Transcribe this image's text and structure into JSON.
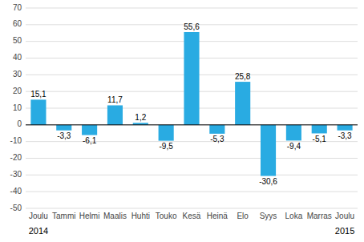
{
  "chart_data": {
    "type": "bar",
    "categories": [
      "Joulu",
      "Tammi",
      "Helmi",
      "Maalis",
      "Huhti",
      "Touko",
      "Kesä",
      "Heinä",
      "Elo",
      "Syys",
      "Loka",
      "Marras",
      "Joulu"
    ],
    "values": [
      15.1,
      -3.3,
      -6.1,
      11.7,
      1.2,
      -9.5,
      55.6,
      -5.3,
      25.8,
      -30.6,
      -9.4,
      -5.1,
      -3.3
    ],
    "value_labels": [
      "15,1",
      "-3,3",
      "-6,1",
      "11,7",
      "1,2",
      "-9,5",
      "55,6",
      "-5,3",
      "25,8",
      "-30,6",
      "-9,4",
      "-5,1",
      "-3,3"
    ],
    "color": "#29abe2",
    "ylim": [
      -50,
      70
    ],
    "yticks": [
      -50,
      -40,
      -30,
      -20,
      -10,
      0,
      10,
      20,
      30,
      40,
      50,
      60,
      70
    ],
    "grid": true,
    "data_labels": true,
    "annotations": [
      "2014",
      "2015"
    ]
  }
}
